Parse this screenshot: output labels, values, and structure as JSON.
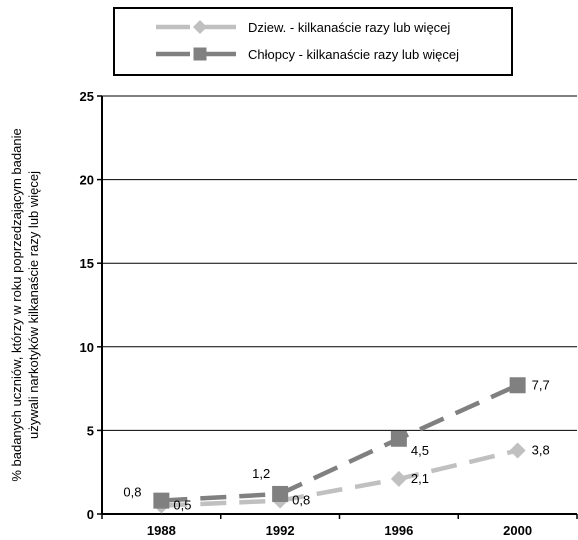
{
  "chart_data": {
    "type": "line",
    "categories": [
      "1988",
      "1992",
      "1996",
      "2000"
    ],
    "ylabel_line1": "% badanych uczniów, którzy w roku poprzedzającym badanie",
    "ylabel_line2": "używali narkotyków kilkanaście razy lub więcej",
    "ylim": [
      0,
      25
    ],
    "yticks": [
      "0",
      "5",
      "10",
      "15",
      "20",
      "25"
    ],
    "grid": "horizontal",
    "legend_position": "top",
    "series": [
      {
        "name": "Dziew. - kilkanaście razy lub więcej",
        "values": [
          0.5,
          0.8,
          2.1,
          3.8
        ],
        "labels": [
          "0,5",
          "0,8",
          "2,1",
          "3,8"
        ],
        "color": "#c0c0c0",
        "marker": "diamond",
        "line": "dashed"
      },
      {
        "name": "Chłopcy - kilkanaście razy lub więcej",
        "values": [
          0.8,
          1.2,
          4.5,
          7.7
        ],
        "labels": [
          "0,8",
          "1,2",
          "4,5",
          "7,7"
        ],
        "color": "#808080",
        "marker": "square",
        "line": "dashed"
      }
    ]
  }
}
